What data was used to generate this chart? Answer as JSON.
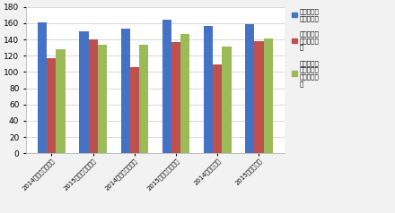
{
  "categories": [
    "2014年本期判断指数",
    "2015年本期判断指数",
    "2014年下期预期指数",
    "2015年下期预期指数",
    "2014年信心指数",
    "2015年信心指数"
  ],
  "series": [
    {
      "name": "产业园区整\n体景气状况",
      "values": [
        161,
        150,
        153,
        164,
        156,
        159
      ],
      "color": "#4472C4"
    },
    {
      "name": "园区及主要\n企业经营状\n况",
      "values": [
        117,
        140,
        106,
        137,
        109,
        138
      ],
      "color": "#C0504D"
    },
    {
      "name": "产业园区总\n体吸引投资\n落户能力状\n况",
      "values": [
        128,
        133,
        133,
        147,
        131,
        141
      ],
      "color": "#9BBB59"
    }
  ],
  "ylim": [
    0,
    180
  ],
  "yticks": [
    0,
    20,
    40,
    60,
    80,
    100,
    120,
    140,
    160,
    180
  ],
  "background_color": "#F2F2F2",
  "plot_bg_color": "#FFFFFF",
  "grid_color": "#C8C8C8",
  "bar_width": 0.22,
  "title": "",
  "xlabel": "",
  "ylabel": ""
}
